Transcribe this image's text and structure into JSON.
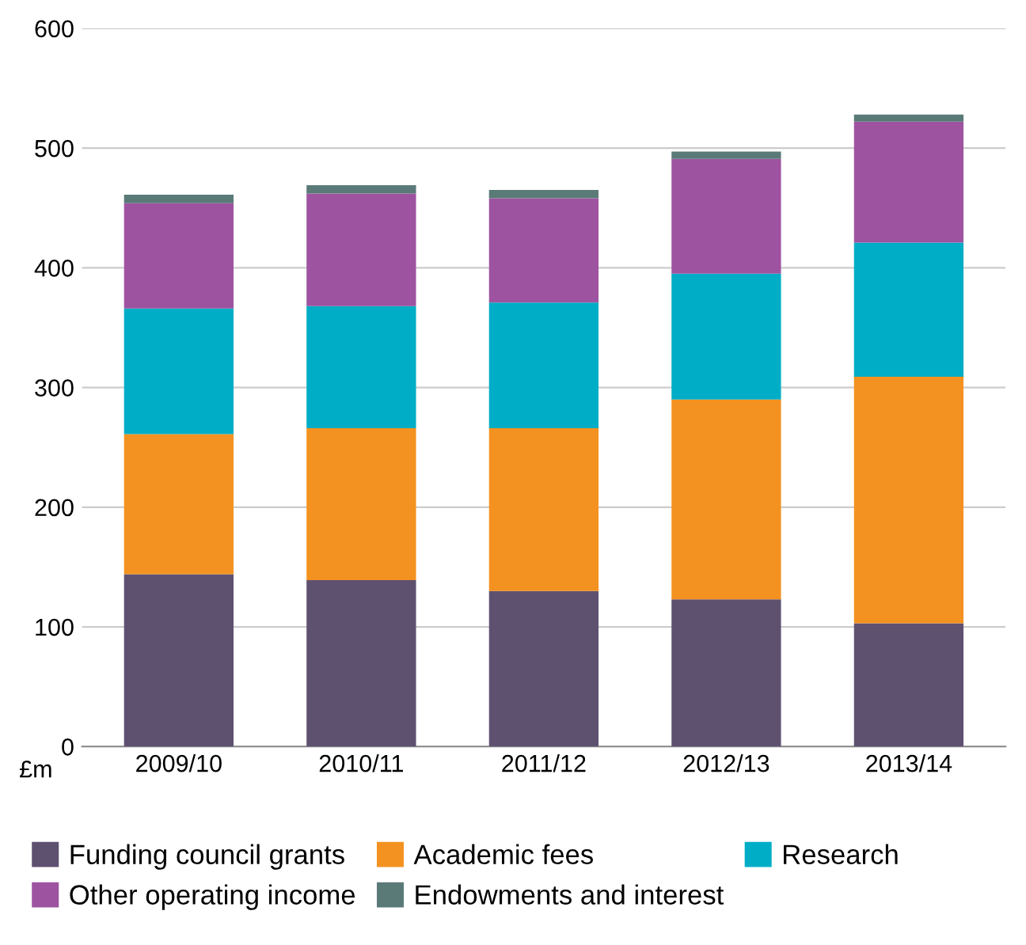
{
  "chart_data": {
    "type": "bar",
    "stacked": true,
    "ylabel": "£m",
    "categories": [
      "2009/10",
      "2010/11",
      "2011/12",
      "2012/13",
      "2013/14"
    ],
    "series": [
      {
        "name": "Funding council grants",
        "color": "#5e5170",
        "values": [
          144,
          139,
          130,
          123,
          103
        ]
      },
      {
        "name": "Academic fees",
        "color": "#f39220",
        "values": [
          117,
          127,
          136,
          167,
          206
        ]
      },
      {
        "name": "Research",
        "color": "#00adc6",
        "values": [
          105,
          102,
          105,
          105,
          112
        ]
      },
      {
        "name": "Other operating income",
        "color": "#9e53a0",
        "values": [
          88,
          94,
          87,
          96,
          101
        ]
      },
      {
        "name": "Endowments and interest",
        "color": "#5a7a78",
        "values": [
          7,
          7,
          7,
          6,
          6
        ]
      }
    ],
    "ylim": [
      0,
      600
    ],
    "yticks": [
      0,
      100,
      200,
      300,
      400,
      500,
      600
    ],
    "grid": "y",
    "legend": "bottom"
  }
}
